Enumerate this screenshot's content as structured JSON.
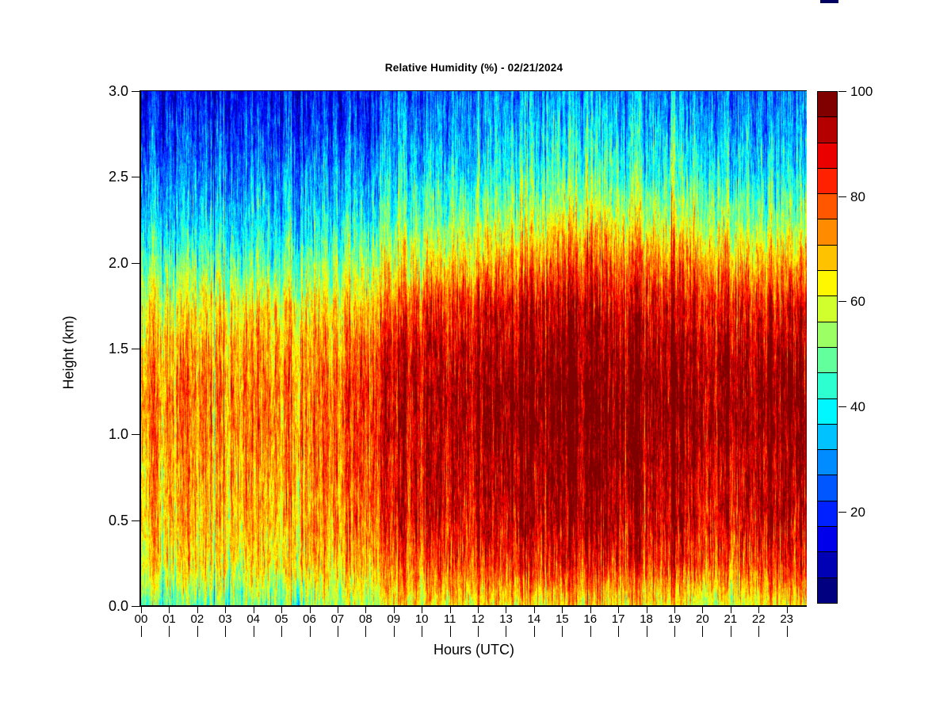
{
  "decorations": {
    "top_mark_color": "#000060"
  },
  "chart_data": {
    "type": "heatmap",
    "title": "Relative Humidity (%) - 02/21/2024",
    "xlabel": "Hours (UTC)",
    "ylabel": "Height (km)",
    "x_ticks": [
      "00",
      "01",
      "02",
      "03",
      "04",
      "05",
      "06",
      "07",
      "08",
      "09",
      "10",
      "11",
      "12",
      "13",
      "14",
      "15",
      "16",
      "17",
      "18",
      "19",
      "20",
      "21",
      "22",
      "23"
    ],
    "y_ticks": [
      "0.0",
      "0.5",
      "1.0",
      "1.5",
      "2.0",
      "2.5",
      "3.0"
    ],
    "x_range_hours": [
      0,
      23.7
    ],
    "y_range_km": [
      0,
      3
    ],
    "grid_on": false,
    "colorbar": {
      "tick_values": [
        20,
        40,
        60,
        80,
        100
      ],
      "tick_labels": [
        "20",
        "40",
        "60",
        "80",
        "100"
      ],
      "value_min": 2.5,
      "value_max": 100,
      "n_levels": 20,
      "level_step": 5,
      "palette_low_to_high": [
        "#000080",
        "#0000B5",
        "#0000EB",
        "#0021FF",
        "#0057FF",
        "#008CFF",
        "#00C2FF",
        "#00F7FF",
        "#2EFFD1",
        "#63FF9C",
        "#9CFF63",
        "#D1FF2E",
        "#FFF700",
        "#FFC200",
        "#FF8C00",
        "#FF5700",
        "#FF2100",
        "#EB0000",
        "#B50000",
        "#800000"
      ]
    },
    "grid": {
      "hours": [
        0,
        1,
        2,
        3,
        4,
        5,
        6,
        7,
        8,
        9,
        10,
        11,
        12,
        13,
        14,
        15,
        16,
        17,
        18,
        19,
        20,
        21,
        22,
        23
      ],
      "heights_km": [
        0.0,
        0.25,
        0.5,
        0.75,
        1.0,
        1.25,
        1.5,
        1.75,
        2.0,
        2.25,
        2.5,
        2.75,
        3.0
      ],
      "values_by_height": [
        [
          48,
          48,
          48,
          49,
          50,
          48,
          49,
          52,
          56,
          60,
          62,
          62,
          62,
          63,
          63,
          63,
          64,
          64,
          63,
          62,
          58,
          58,
          62,
          63
        ],
        [
          63,
          63,
          64,
          64,
          64,
          64,
          65,
          66,
          70,
          74,
          78,
          80,
          80,
          82,
          83,
          84,
          85,
          85,
          84,
          83,
          80,
          78,
          82,
          84
        ],
        [
          67,
          68,
          68,
          68,
          69,
          68,
          69,
          72,
          78,
          83,
          87,
          88,
          88,
          90,
          92,
          93,
          93,
          92,
          90,
          90,
          88,
          86,
          90,
          91
        ],
        [
          68,
          69,
          70,
          70,
          71,
          70,
          71,
          74,
          80,
          85,
          88,
          90,
          90,
          92,
          94,
          96,
          96,
          95,
          93,
          92,
          90,
          88,
          92,
          93
        ],
        [
          71,
          72,
          72,
          73,
          74,
          72,
          72,
          76,
          82,
          87,
          90,
          92,
          93,
          95,
          97,
          98,
          98,
          98,
          96,
          95,
          96,
          93,
          95,
          96
        ],
        [
          73,
          74,
          74,
          75,
          76,
          74,
          73,
          76,
          83,
          88,
          91,
          93,
          94,
          96,
          98,
          99,
          99,
          98,
          97,
          96,
          97,
          94,
          96,
          97
        ],
        [
          69,
          70,
          70,
          71,
          72,
          70,
          69,
          72,
          79,
          85,
          88,
          90,
          91,
          93,
          95,
          96,
          96,
          95,
          94,
          93,
          94,
          91,
          93,
          94
        ],
        [
          61,
          62,
          62,
          63,
          63,
          62,
          61,
          63,
          68,
          74,
          79,
          83,
          85,
          87,
          89,
          90,
          90,
          89,
          88,
          87,
          88,
          85,
          86,
          87
        ],
        [
          46,
          47,
          47,
          48,
          48,
          47,
          47,
          50,
          54,
          58,
          62,
          65,
          68,
          70,
          73,
          76,
          78,
          78,
          76,
          74,
          75,
          70,
          68,
          70
        ],
        [
          34,
          35,
          35,
          36,
          36,
          35,
          34,
          37,
          40,
          44,
          47,
          50,
          52,
          54,
          57,
          60,
          61,
          60,
          58,
          56,
          57,
          52,
          50,
          52
        ],
        [
          26,
          27,
          27,
          28,
          28,
          27,
          26,
          28,
          31,
          34,
          36,
          38,
          40,
          42,
          44,
          46,
          47,
          46,
          45,
          43,
          44,
          40,
          38,
          40
        ],
        [
          19,
          20,
          20,
          21,
          21,
          20,
          19,
          21,
          23,
          26,
          28,
          30,
          31,
          33,
          35,
          36,
          37,
          36,
          35,
          34,
          34,
          31,
          30,
          31
        ],
        [
          14,
          15,
          15,
          15,
          16,
          15,
          14,
          16,
          18,
          20,
          22,
          24,
          25,
          26,
          28,
          29,
          30,
          29,
          28,
          27,
          27,
          25,
          24,
          25
        ]
      ]
    },
    "texture": {
      "seed": 7,
      "column_amplitude": 8,
      "column_persistence": 0.55,
      "spike_probability": 0.04,
      "spike_amplitude": 20,
      "walk_amplitude": 3.6,
      "walk_persistence": 0.93
    }
  }
}
